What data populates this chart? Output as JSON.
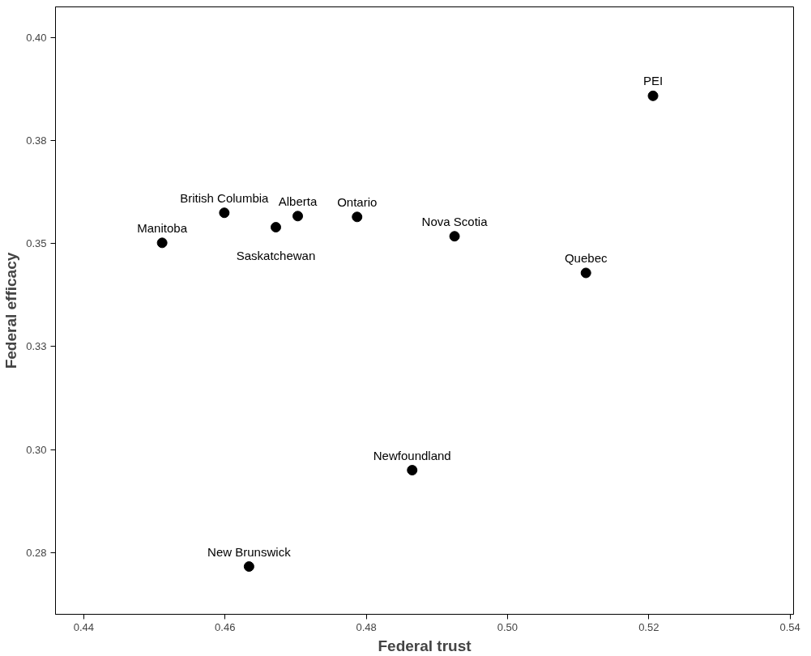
{
  "chart_data": {
    "type": "scatter",
    "xlabel": "Federal trust",
    "ylabel": "Federal efficacy",
    "x": [
      0.5206,
      0.4599,
      0.4703,
      0.4787,
      0.4672,
      0.4511,
      0.4925,
      0.5111,
      0.4865,
      0.4634
    ],
    "values": [
      0.3859,
      0.3575,
      0.3567,
      0.3565,
      0.354,
      0.3502,
      0.3518,
      0.3429,
      0.295,
      0.2716
    ],
    "color": "#000000",
    "marker": "circle",
    "grid": false,
    "xlim": [
      0.436,
      0.5405
    ],
    "ylim": [
      0.26,
      0.4075
    ],
    "xticks": [
      0.44,
      0.46,
      0.48,
      {
        "value": 0.5,
        "label": "0.50"
      },
      0.52,
      0.54
    ],
    "yticks": [
      {
        "value": 0.275,
        "label": "0.28"
      },
      {
        "value": 0.3,
        "label": "0.30"
      },
      {
        "value": 0.325,
        "label": "0.33"
      },
      {
        "value": 0.35,
        "label": "0.35"
      },
      {
        "value": 0.375,
        "label": "0.38"
      },
      {
        "value": 0.4,
        "label": "0.40"
      }
    ],
    "annotations": [
      {
        "text": "PEI",
        "x": 0.5206,
        "y": 0.3859
      },
      {
        "text": "British Columbia",
        "x": 0.4599,
        "y": 0.3575
      },
      {
        "text": "Alberta",
        "x": 0.4703,
        "y": 0.3567
      },
      {
        "text": "Ontario",
        "x": 0.4787,
        "y": 0.3565
      },
      {
        "text": "Saskatchewan",
        "x": 0.4672,
        "y": 0.354
      },
      {
        "text": "Manitoba",
        "x": 0.4511,
        "y": 0.3502
      },
      {
        "text": "Nova Scotia",
        "x": 0.4925,
        "y": 0.3518
      },
      {
        "text": "Quebec",
        "x": 0.5111,
        "y": 0.3429
      },
      {
        "text": "Newfoundland",
        "x": 0.4865,
        "y": 0.295
      },
      {
        "text": "New Brunswick",
        "x": 0.4634,
        "y": 0.2716
      }
    ]
  }
}
